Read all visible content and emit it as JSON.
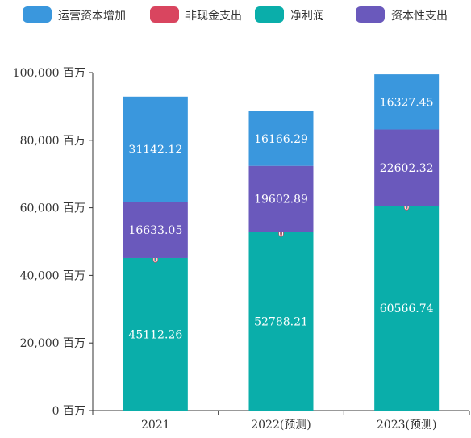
{
  "chart_data": {
    "type": "bar",
    "stacked": true,
    "categories": [
      "2021",
      "2022(预测)",
      "2023(预测)"
    ],
    "y_unit": "百万",
    "ylim": [
      0,
      100000
    ],
    "yticks": [
      0,
      20000,
      40000,
      60000,
      80000,
      100000
    ],
    "ytick_labels": [
      "0 百万",
      "20,000 百万",
      "40,000 百万",
      "60,000 百万",
      "80,000 百万",
      "100,000 百万"
    ],
    "legend_position": "top",
    "series": [
      {
        "name": "净利润",
        "color": "#0aaeaa",
        "values": [
          45112.26,
          52788.21,
          60566.74
        ],
        "labels": [
          "45112.26",
          "52788.21",
          "60566.74"
        ]
      },
      {
        "name": "非现金支出",
        "color": "#d9455f",
        "values": [
          0,
          0,
          0
        ],
        "labels": [
          "0",
          "0",
          "0"
        ]
      },
      {
        "name": "资本性支出",
        "color": "#6a59bc",
        "values": [
          16633.05,
          19602.89,
          22602.32
        ],
        "labels": [
          "16633.05",
          "19602.89",
          "22602.32"
        ]
      },
      {
        "name": "运营资本增加",
        "color": "#3a97dd",
        "values": [
          31142.12,
          16166.29,
          16327.45
        ],
        "labels": [
          "31142.12",
          "16166.29",
          "16327.45"
        ]
      }
    ],
    "legend_order": [
      "运营资本增加",
      "非现金支出",
      "净利润",
      "资本性支出"
    ]
  }
}
